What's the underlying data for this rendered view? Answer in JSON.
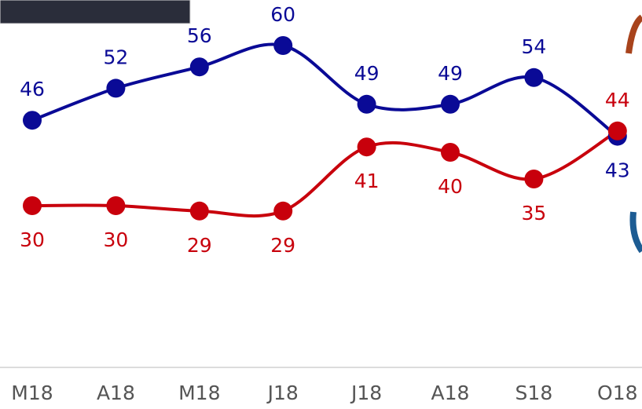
{
  "chart_data": {
    "type": "line",
    "categories": [
      "M18",
      "A18",
      "M18",
      "J18",
      "J18",
      "A18",
      "S18",
      "O18"
    ],
    "series": [
      {
        "color": "#0a0a96",
        "values": [
          46,
          52,
          56,
          60,
          49,
          49,
          54,
          43
        ]
      },
      {
        "color": "#c8000c",
        "values": [
          30,
          30,
          29,
          29,
          41,
          40,
          35,
          44
        ]
      }
    ]
  }
}
